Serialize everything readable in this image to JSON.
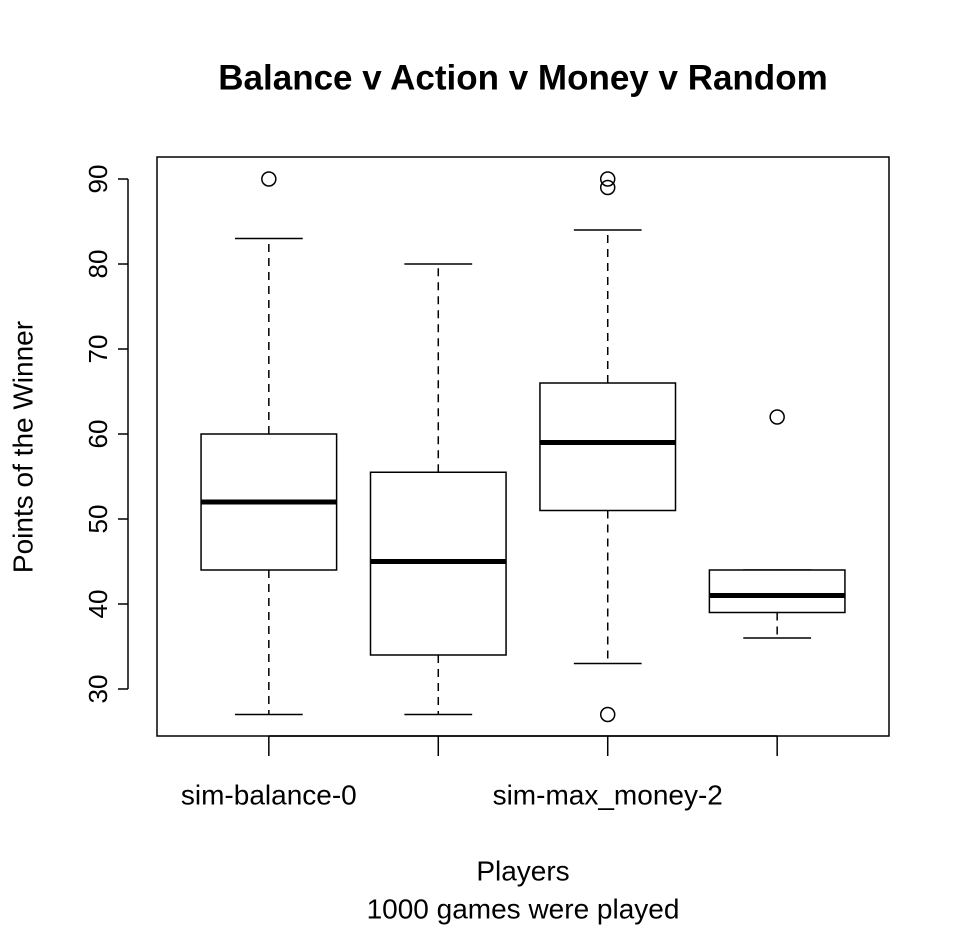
{
  "chart_data": {
    "type": "box",
    "title": "Balance v Action v Money v Random",
    "x_label": "Players",
    "subtitle": "1000 games were played",
    "y_label": "Points of the Winner",
    "categories": [
      "sim-balance-0",
      null,
      "sim-max_money-2",
      null
    ],
    "boxes": [
      {
        "whislo": 27,
        "q1": 44,
        "med": 52,
        "q3": 60,
        "whishi": 83,
        "fliers": [
          90
        ]
      },
      {
        "whislo": 27,
        "q1": 34,
        "med": 45,
        "q3": 55.5,
        "whishi": 80,
        "fliers": []
      },
      {
        "whislo": 33,
        "q1": 51,
        "med": 59,
        "q3": 66,
        "whishi": 84,
        "fliers": [
          90,
          89,
          27
        ]
      },
      {
        "whislo": 36,
        "q1": 39,
        "med": 41,
        "q3": 44,
        "whishi": 44,
        "fliers": [
          62
        ]
      }
    ],
    "color": "#000000",
    "box_fill": "#ffffff",
    "ylim": [
      24.47,
      92.59
    ],
    "yticks": [
      30,
      40,
      50,
      60,
      70,
      80,
      90
    ],
    "grid": false
  }
}
